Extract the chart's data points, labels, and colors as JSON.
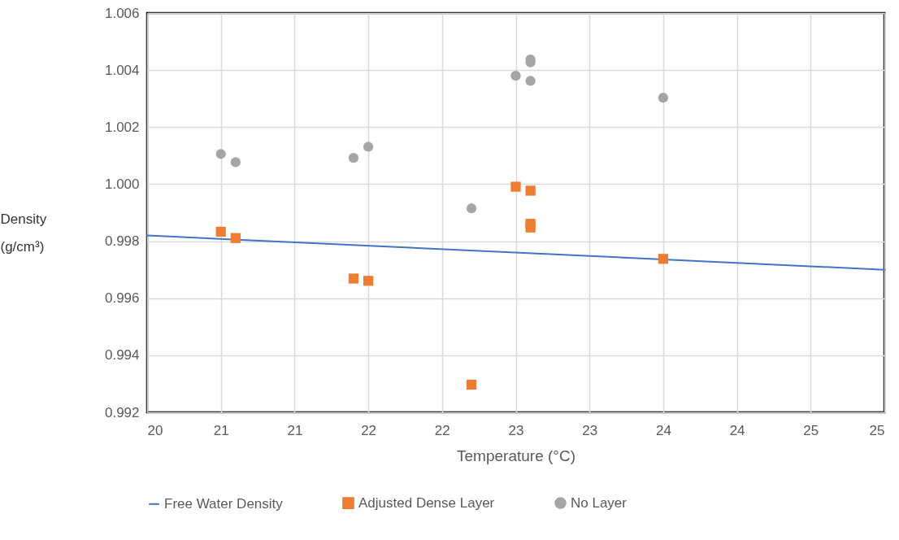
{
  "chart_data": {
    "type": "scatter",
    "xlabel": "Temperature (°C)",
    "ylabel": "Density\n(g/cm³)",
    "xlim": [
      20,
      25
    ],
    "xticks": [
      20,
      {
        "value": 20.5,
        "label": "21"
      },
      21,
      {
        "value": 21.5,
        "label": "22"
      },
      22,
      {
        "value": 22.5,
        "label": "23"
      },
      23,
      {
        "value": 23.5,
        "label": "24"
      },
      24,
      {
        "value": 24.5,
        "label": "25"
      },
      25
    ],
    "ylim": [
      0.992,
      1.006
    ],
    "yticks": [
      0.992,
      0.994,
      0.996,
      0.998,
      {
        "value": 1.0,
        "label": "1.000"
      },
      1.002,
      1.004,
      1.006
    ],
    "grid": true,
    "legend": "bottom",
    "series": [
      {
        "name": "Free Water Density",
        "type": "line",
        "color": "#4472c4",
        "x": [
          20,
          25
        ],
        "values": [
          0.9982,
          0.997
        ]
      },
      {
        "name": "Adjusted Dense Layer",
        "marker": "square",
        "color": "#ed7d31",
        "x": [
          20.5,
          20.6,
          21.4,
          21.5,
          22.2,
          22.5,
          22.6,
          22.6,
          22.6,
          23.5
        ],
        "values": [
          0.99833,
          0.99811,
          0.99669,
          0.99661,
          0.99297,
          0.99991,
          0.99977,
          0.99861,
          0.99848,
          0.99738
        ]
      },
      {
        "name": "No Layer",
        "marker": "circle",
        "color": "#a5a5a5",
        "x": [
          20.5,
          20.6,
          21.4,
          21.5,
          22.2,
          22.5,
          22.6,
          22.6,
          22.6,
          23.5
        ],
        "values": [
          1.00106,
          1.00077,
          1.00092,
          1.00131,
          0.99915,
          1.0038,
          1.00437,
          1.00427,
          1.00362,
          1.00303
        ]
      }
    ]
  }
}
